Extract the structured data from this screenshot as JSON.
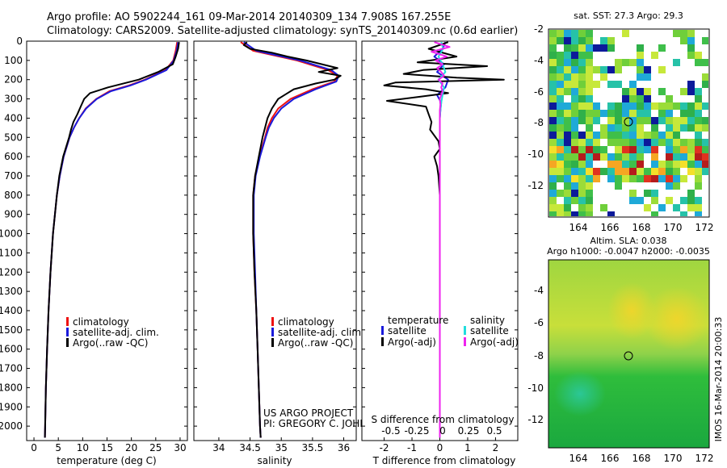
{
  "header": {
    "line1": "Argo profile: AO 5902244_161 09-Mar-2014 20140309_134 7.908S 167.255E",
    "line2": "Climatology: CARS2009. Satellite-adjusted climatology: synTS_20140309.nc (0.6d earlier)"
  },
  "credits": {
    "project": "US ARGO PROJECT",
    "pi": "PI: GREGORY C. JOHNSON"
  },
  "side_stamp": "IMOS 16-Mar-2014 20:00:33",
  "colors": {
    "climatology": "#ee1111",
    "satellite": "#1a1adc",
    "argo": "#000000",
    "sal_satellite": "#22dddd",
    "sal_argo": "#ee22ee"
  },
  "chart_data": [
    {
      "id": "temperature",
      "type": "line",
      "xlabel": "temperature (deg C)",
      "xlim": [
        -1.5,
        31.5
      ],
      "xticks": [
        0,
        5,
        10,
        15,
        20,
        25,
        30
      ],
      "ylim": [
        0,
        2075
      ],
      "yticks": [
        0,
        100,
        200,
        300,
        400,
        500,
        600,
        700,
        800,
        900,
        1000,
        1100,
        1200,
        1300,
        1400,
        1500,
        1600,
        1700,
        1800,
        1900,
        2000
      ],
      "legend": [
        "climatology",
        "satellite-adj. clim.",
        "Argo(..raw -QC)"
      ],
      "series": [
        {
          "name": "climatology",
          "color": "#ee1111",
          "depth": [
            5,
            50,
            100,
            150,
            200,
            230,
            260,
            300,
            350,
            400,
            450,
            500,
            600,
            700,
            800,
            900,
            1000,
            1200,
            1400,
            1600,
            1800,
            2000,
            2060
          ],
          "values": [
            29.4,
            29.1,
            28.6,
            27,
            22.8,
            19.5,
            15.5,
            12.8,
            10.6,
            9.3,
            8.2,
            7.3,
            6.1,
            5.3,
            4.7,
            4.3,
            3.9,
            3.4,
            3.0,
            2.7,
            2.45,
            2.3,
            2.25
          ]
        },
        {
          "name": "satellite-adj. clim.",
          "color": "#1a1adc",
          "depth": [
            5,
            50,
            100,
            150,
            200,
            230,
            260,
            300,
            350,
            400,
            450,
            500,
            600,
            700,
            800,
            900,
            1000,
            1200,
            1400,
            1600,
            1800,
            2000,
            2060
          ],
          "values": [
            29.6,
            29.3,
            28.7,
            27.2,
            23,
            19.8,
            15.8,
            12.9,
            10.7,
            9.3,
            8.2,
            7.3,
            6.1,
            5.3,
            4.7,
            4.3,
            3.9,
            3.4,
            3.0,
            2.7,
            2.45,
            2.3,
            2.25
          ]
        },
        {
          "name": "Argo",
          "color": "#000000",
          "depth": [
            5,
            40,
            80,
            120,
            160,
            200,
            240,
            270,
            300,
            340,
            380,
            420,
            460,
            500,
            600,
            700,
            800,
            900,
            1000,
            1200,
            1400,
            1600,
            1800,
            2000,
            2060
          ],
          "values": [
            29.8,
            29.6,
            29.1,
            28.5,
            25.5,
            21.5,
            15.2,
            11.5,
            10.3,
            9.6,
            8.9,
            8.1,
            7.6,
            7.2,
            6.0,
            5.2,
            4.7,
            4.3,
            3.9,
            3.4,
            3.0,
            2.7,
            2.45,
            2.3,
            2.25
          ]
        }
      ]
    },
    {
      "id": "salinity",
      "type": "line",
      "xlabel": "salinity",
      "xlim": [
        33.6,
        36.2
      ],
      "xticks": [
        34,
        34.5,
        35,
        35.5,
        36
      ],
      "ylim": [
        0,
        2075
      ],
      "legend": [
        "climatology",
        "satellite-adj. clim.",
        "Argo(..raw -QC)"
      ],
      "series": [
        {
          "name": "climatology",
          "color": "#ee1111",
          "depth": [
            5,
            50,
            100,
            150,
            180,
            210,
            250,
            300,
            350,
            400,
            450,
            500,
            600,
            700,
            800,
            1000,
            1200,
            1400,
            1600,
            1800,
            2000,
            2060
          ],
          "values": [
            34.35,
            34.55,
            35.25,
            35.75,
            35.9,
            35.85,
            35.5,
            35.15,
            34.95,
            34.85,
            34.78,
            34.74,
            34.65,
            34.58,
            34.55,
            34.55,
            34.57,
            34.6,
            34.62,
            34.64,
            34.66,
            34.67
          ]
        },
        {
          "name": "satellite-adj. clim.",
          "color": "#1a1adc",
          "depth": [
            5,
            50,
            100,
            150,
            180,
            210,
            250,
            300,
            350,
            400,
            450,
            500,
            600,
            700,
            800,
            1000,
            1200,
            1400,
            1600,
            1800,
            2000,
            2060
          ],
          "values": [
            34.4,
            34.6,
            35.3,
            35.8,
            35.92,
            35.88,
            35.55,
            35.2,
            35.0,
            34.88,
            34.8,
            34.75,
            34.66,
            34.59,
            34.56,
            34.56,
            34.58,
            34.6,
            34.62,
            34.64,
            34.66,
            34.67
          ]
        },
        {
          "name": "Argo",
          "color": "#000000",
          "depth": [
            5,
            20,
            40,
            60,
            80,
            100,
            120,
            140,
            160,
            180,
            200,
            220,
            250,
            280,
            300,
            350,
            400,
            450,
            500,
            600,
            700,
            800,
            1000,
            1200,
            1400,
            1600,
            1800,
            2000,
            2060
          ],
          "values": [
            34.45,
            34.4,
            34.5,
            34.85,
            35.1,
            35.4,
            35.65,
            35.9,
            35.6,
            35.95,
            35.85,
            35.55,
            35.2,
            35.05,
            34.95,
            34.85,
            34.78,
            34.74,
            34.7,
            34.64,
            34.58,
            34.55,
            34.55,
            34.57,
            34.6,
            34.62,
            34.64,
            34.66,
            34.67
          ]
        }
      ]
    },
    {
      "id": "difference",
      "type": "line",
      "xlabel": "T difference from climatology",
      "xlabel_top": "S difference from climatology",
      "xlim": [
        -2.8,
        2.8
      ],
      "xticks": [
        -2,
        -1,
        0,
        1,
        2
      ],
      "salinity_ticks": [
        "-0.5",
        "-0.25",
        "0",
        "0.25",
        "0.5"
      ],
      "ylim": [
        0,
        2075
      ],
      "legend_titles": [
        "temperature",
        "salinity"
      ],
      "legend": [
        "satellite",
        "Argo(-adj)",
        "satellite",
        "Argo(-adj)"
      ],
      "series": [
        {
          "name": "T satellite",
          "color": "#1a1adc",
          "depth": [
            5,
            40,
            80,
            120,
            160,
            200,
            240,
            280,
            320,
            360,
            400,
            500,
            600,
            800,
            1000,
            1500,
            2060
          ],
          "values": [
            0.2,
            0.1,
            -0.2,
            0.15,
            -0.1,
            0.3,
            0.2,
            -0.1,
            0.05,
            0.02,
            0.0,
            0.0,
            0.0,
            0.0,
            0.0,
            0.0,
            0.0
          ]
        },
        {
          "name": "T Argo",
          "color": "#000000",
          "depth": [
            5,
            40,
            80,
            110,
            130,
            150,
            170,
            190,
            200,
            215,
            230,
            250,
            270,
            290,
            310,
            340,
            380,
            420,
            460,
            520,
            560,
            600,
            650,
            700,
            800,
            900,
            1000,
            1200,
            1500,
            2060
          ],
          "values": [
            0.3,
            -0.4,
            0.6,
            -0.8,
            1.7,
            -0.6,
            -1.3,
            0.6,
            2.3,
            -1.6,
            -2.0,
            -0.5,
            0.3,
            -0.8,
            -1.9,
            -0.5,
            -0.4,
            -0.3,
            -0.35,
            -0.05,
            0.0,
            -0.2,
            -0.1,
            -0.05,
            0.0,
            0.0,
            0.0,
            0.0,
            0.0,
            0.0
          ]
        },
        {
          "name": "S satellite",
          "color": "#22dddd",
          "depth": [
            5,
            40,
            80,
            120,
            160,
            200,
            240,
            280,
            320,
            360,
            400,
            500,
            700,
            1000,
            1500,
            2060
          ],
          "values": [
            0.05,
            0.12,
            -0.05,
            0.1,
            0.2,
            -0.05,
            0.15,
            0.1,
            0.05,
            0.02,
            0.0,
            0.0,
            0.0,
            0.0,
            0.0,
            0.0
          ]
        },
        {
          "name": "S Argo",
          "color": "#ee22ee",
          "depth": [
            5,
            30,
            55,
            80,
            100,
            120,
            140,
            160,
            180,
            200,
            220,
            240,
            260,
            280,
            300,
            330,
            360,
            400,
            450,
            500,
            600,
            800,
            1000,
            1500,
            2060
          ],
          "values": [
            -0.2,
            0.35,
            -0.3,
            0.25,
            -0.15,
            0.1,
            -0.1,
            0.05,
            0.15,
            -0.05,
            0.1,
            0.05,
            0.1,
            0.05,
            0.0,
            0.02,
            0.0,
            0.0,
            0.0,
            0.0,
            0.0,
            0.0,
            0.0,
            0.0,
            0.0
          ]
        }
      ]
    }
  ],
  "maps": {
    "sst": {
      "title": "sat. SST: 27.3 Argo: 29.3",
      "xticks": [
        "164",
        "166",
        "168",
        "170",
        "172"
      ],
      "yticks": [
        "-2",
        "-4",
        "-6",
        "-8",
        "-10",
        "-12"
      ]
    },
    "sla": {
      "title1": "Altim. SLA: 0.038",
      "title2": "Argo h1000: -0.0047 h2000: -0.0035",
      "xticks": [
        "164",
        "166",
        "168",
        "170",
        "172"
      ],
      "yticks": [
        "-4",
        "-6",
        "-8",
        "-10",
        "-12"
      ]
    }
  }
}
